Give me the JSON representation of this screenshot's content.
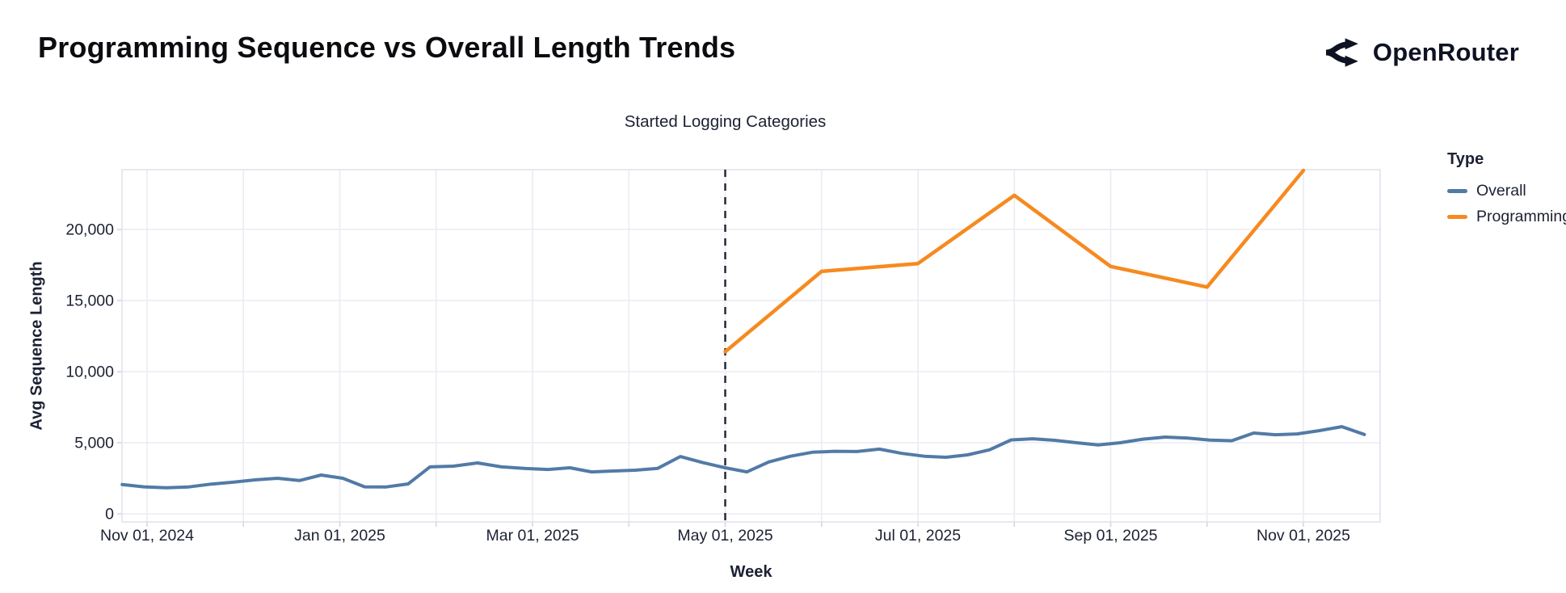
{
  "header": {
    "title": "Programming Sequence vs Overall Length Trends",
    "brand": "OpenRouter"
  },
  "chart_data": {
    "type": "line",
    "title": "Programming Sequence vs Overall Length Trends",
    "xlabel": "Week",
    "ylabel": "Avg Sequence Length",
    "x_range": [
      "2024-10-24",
      "2025-11-25"
    ],
    "ylim": [
      0,
      24200
    ],
    "grid": true,
    "legend_position": "right",
    "y_ticks": [
      {
        "value": 0,
        "label": "0"
      },
      {
        "value": 5000,
        "label": "5,000"
      },
      {
        "value": 10000,
        "label": "10,000"
      },
      {
        "value": 15000,
        "label": "15,000"
      },
      {
        "value": 20000,
        "label": "20,000"
      }
    ],
    "x_ticks": [
      {
        "date": "2024-11-01",
        "label": "Nov 01, 2024"
      },
      {
        "date": "2025-01-01",
        "label": "Jan 01, 2025"
      },
      {
        "date": "2025-03-01",
        "label": "Mar 01, 2025"
      },
      {
        "date": "2025-05-01",
        "label": "May 01, 2025"
      },
      {
        "date": "2025-07-01",
        "label": "Jul 01, 2025"
      },
      {
        "date": "2025-09-01",
        "label": "Sep 01, 2025"
      },
      {
        "date": "2025-11-01",
        "label": "Nov 01, 2025"
      }
    ],
    "month_grid_dates": [
      "2024-11-01",
      "2024-12-01",
      "2025-01-01",
      "2025-02-01",
      "2025-03-01",
      "2025-04-01",
      "2025-05-01",
      "2025-06-01",
      "2025-07-01",
      "2025-08-01",
      "2025-09-01",
      "2025-10-01",
      "2025-11-01"
    ],
    "annotation": {
      "label": "Started Logging Categories",
      "date": "2025-05-01"
    },
    "legend": {
      "title": "Type",
      "items": [
        {
          "label": "Overall",
          "color": "#527aa6"
        },
        {
          "label": "Programming",
          "color": "#f68a20"
        }
      ]
    },
    "series": [
      {
        "name": "Overall",
        "color": "#527aa6",
        "stroke_width": 4,
        "points": [
          [
            "2024-10-24",
            2060
          ],
          [
            "2024-10-31",
            1900
          ],
          [
            "2024-11-07",
            1830
          ],
          [
            "2024-11-14",
            1890
          ],
          [
            "2024-11-21",
            2090
          ],
          [
            "2024-11-28",
            2230
          ],
          [
            "2024-12-05",
            2390
          ],
          [
            "2024-12-12",
            2500
          ],
          [
            "2024-12-19",
            2340
          ],
          [
            "2024-12-26",
            2730
          ],
          [
            "2025-01-02",
            2500
          ],
          [
            "2025-01-09",
            1900
          ],
          [
            "2025-01-16",
            1890
          ],
          [
            "2025-01-23",
            2100
          ],
          [
            "2025-01-30",
            3300
          ],
          [
            "2025-02-06",
            3350
          ],
          [
            "2025-02-13",
            3580
          ],
          [
            "2025-02-20",
            3300
          ],
          [
            "2025-02-27",
            3190
          ],
          [
            "2025-03-06",
            3120
          ],
          [
            "2025-03-13",
            3240
          ],
          [
            "2025-03-20",
            2950
          ],
          [
            "2025-03-27",
            3010
          ],
          [
            "2025-04-03",
            3070
          ],
          [
            "2025-04-10",
            3200
          ],
          [
            "2025-04-17",
            4030
          ],
          [
            "2025-04-24",
            3600
          ],
          [
            "2025-05-01",
            3240
          ],
          [
            "2025-05-08",
            2950
          ],
          [
            "2025-05-15",
            3650
          ],
          [
            "2025-05-22",
            4050
          ],
          [
            "2025-05-29",
            4330
          ],
          [
            "2025-06-05",
            4400
          ],
          [
            "2025-06-12",
            4380
          ],
          [
            "2025-06-19",
            4550
          ],
          [
            "2025-06-26",
            4250
          ],
          [
            "2025-07-03",
            4050
          ],
          [
            "2025-07-10",
            3980
          ],
          [
            "2025-07-17",
            4150
          ],
          [
            "2025-07-24",
            4500
          ],
          [
            "2025-07-31",
            5200
          ],
          [
            "2025-08-07",
            5280
          ],
          [
            "2025-08-14",
            5170
          ],
          [
            "2025-08-21",
            5000
          ],
          [
            "2025-08-28",
            4840
          ],
          [
            "2025-09-04",
            5000
          ],
          [
            "2025-09-11",
            5250
          ],
          [
            "2025-09-18",
            5400
          ],
          [
            "2025-09-25",
            5330
          ],
          [
            "2025-10-02",
            5180
          ],
          [
            "2025-10-09",
            5140
          ],
          [
            "2025-10-16",
            5680
          ],
          [
            "2025-10-23",
            5560
          ],
          [
            "2025-10-30",
            5620
          ],
          [
            "2025-11-06",
            5850
          ],
          [
            "2025-11-13",
            6130
          ],
          [
            "2025-11-20",
            5580
          ]
        ]
      },
      {
        "name": "Programming",
        "color": "#f68a20",
        "stroke_width": 4.5,
        "points": [
          [
            "2025-05-01",
            11400
          ],
          [
            "2025-06-01",
            17050
          ],
          [
            "2025-07-01",
            17600
          ],
          [
            "2025-08-01",
            22400
          ],
          [
            "2025-09-01",
            17400
          ],
          [
            "2025-10-01",
            15950
          ],
          [
            "2025-11-01",
            24150
          ]
        ]
      }
    ]
  },
  "colors": {
    "text": "#1c2133",
    "grid": "#ebebf3",
    "border": "#e2e2ed",
    "tick": "#d6d6e2",
    "rule": "#1c2133",
    "background": "#ffffff"
  }
}
